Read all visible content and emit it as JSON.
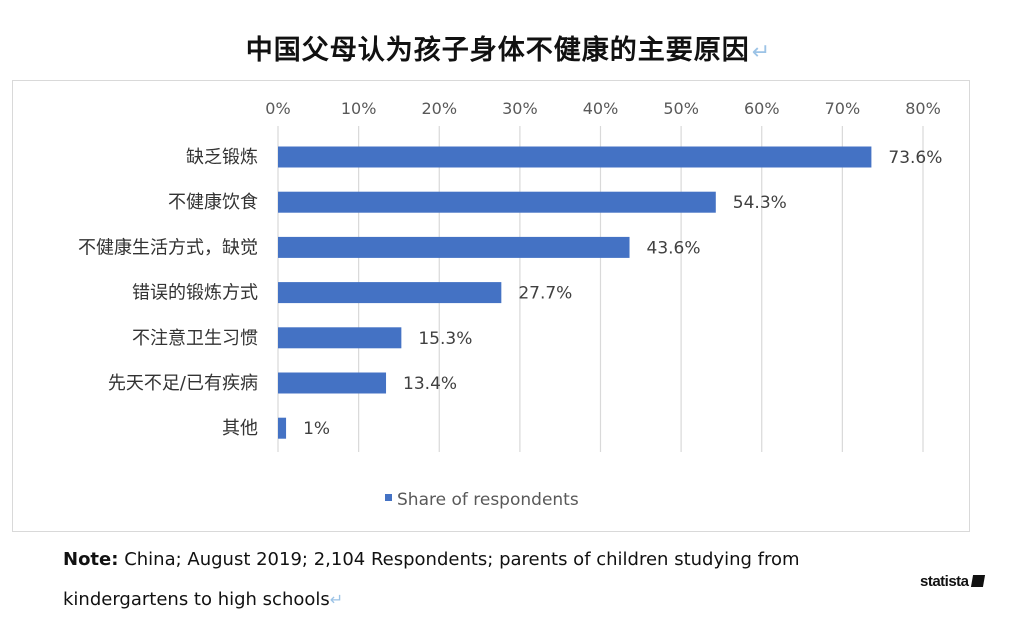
{
  "title": "中国父母认为孩子身体不健康的主要原因",
  "return_glyph": "↵",
  "chart_data": {
    "type": "bar",
    "orientation": "horizontal",
    "categories": [
      "缺乏锻炼",
      "不健康饮食",
      "不健康生活方式，缺觉",
      "错误的锻炼方式",
      "不注意卫生习惯",
      "先天不足/已有疾病",
      "其他"
    ],
    "series": [
      {
        "name": "Share of respondents",
        "values": [
          73.6,
          54.3,
          43.6,
          27.7,
          15.3,
          13.4,
          1
        ],
        "labels": [
          "73.6%",
          "54.3%",
          "43.6%",
          "27.7%",
          "15.3%",
          "13.4%",
          "1%"
        ],
        "color": "#4472c4"
      }
    ],
    "xlim": [
      0,
      80
    ],
    "ticks": [
      0,
      10,
      20,
      30,
      40,
      50,
      60,
      70,
      80
    ],
    "tick_labels": [
      "0%",
      "10%",
      "20%",
      "30%",
      "40%",
      "50%",
      "60%",
      "70%",
      "80%"
    ],
    "axis_position": "top",
    "grid": true,
    "legend_position": "bottom",
    "legend_label": "Share of respondents"
  },
  "note": {
    "label": "Note:",
    "text": "China;  August 2019;  2,104 Respondents;  parents of children studying from kindergartens to high schools"
  },
  "brand": "statista",
  "colors": {
    "bar": "#4472c4",
    "grid": "#d9d9d9",
    "frame": "#d9d9d9"
  }
}
